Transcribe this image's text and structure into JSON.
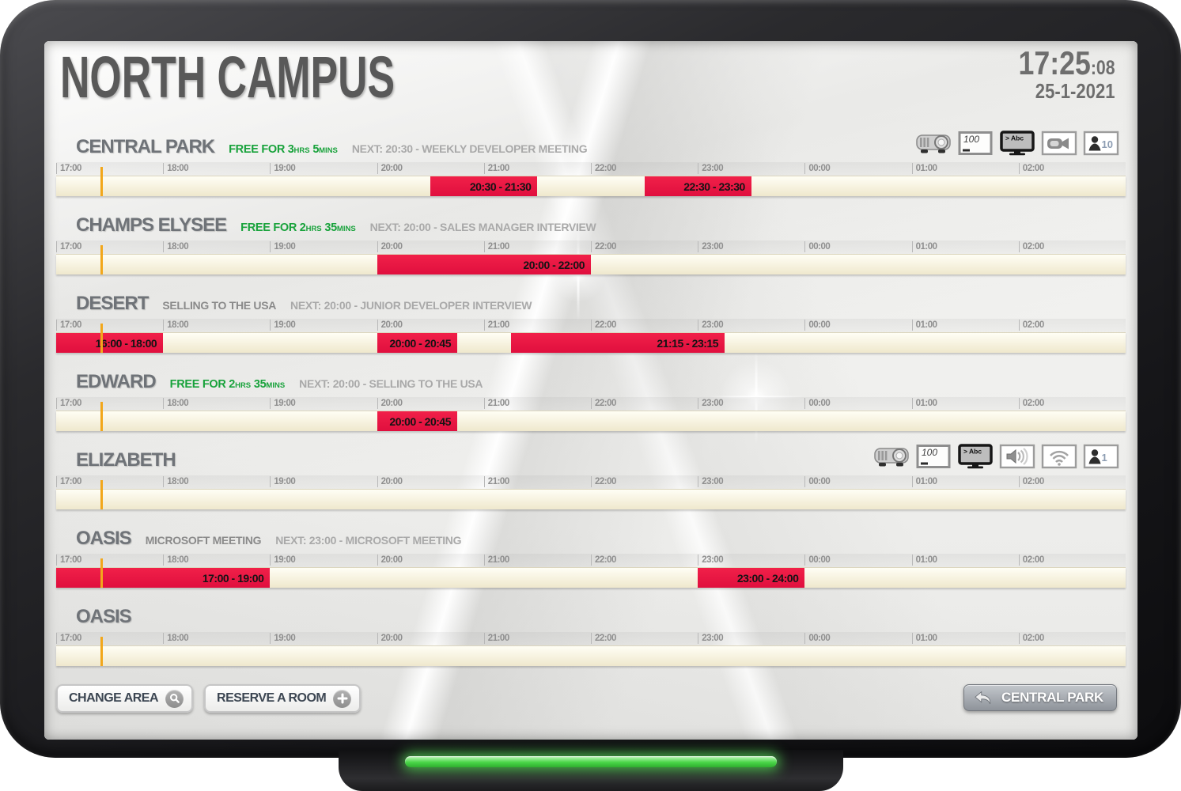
{
  "header": {
    "title": "NORTH CAMPUS",
    "time": "17:25",
    "seconds": ":08",
    "date": "25-1-2021"
  },
  "timeline": {
    "hours": [
      "17:00",
      "18:00",
      "19:00",
      "20:00",
      "21:00",
      "22:00",
      "23:00",
      "00:00",
      "01:00",
      "02:00"
    ],
    "range_start": 17,
    "range_end": 27,
    "now": 17.4167
  },
  "colors": {
    "booking_top": "#f12049",
    "booking_bottom": "#e00f3e",
    "now_marker": "#f2a71b",
    "free_green": "#18a23b",
    "led": "#4ad648"
  },
  "rooms": [
    {
      "name": "CENTRAL PARK",
      "status": {
        "type": "free",
        "parts": [
          {
            "t": "FREE FOR 3",
            "big": true
          },
          {
            "t": "HRS",
            "big": false
          },
          {
            "t": " 5",
            "big": true
          },
          {
            "t": "MINS",
            "big": false
          }
        ]
      },
      "next": "NEXT: 20:30 - WEEKLY DEVELOPER MEETING",
      "amenities": [
        {
          "type": "projector"
        },
        {
          "type": "whiteboard",
          "label": "100"
        },
        {
          "type": "display",
          "label": "> Abc"
        },
        {
          "type": "camera"
        },
        {
          "type": "capacity",
          "label": "10"
        }
      ],
      "bookings": [
        {
          "label": "20:30 - 21:30",
          "start": 20.5,
          "end": 21.5
        },
        {
          "label": "22:30 - 23:30",
          "start": 22.5,
          "end": 23.5
        }
      ]
    },
    {
      "name": "CHAMPS ELYSEE",
      "status": {
        "type": "free",
        "parts": [
          {
            "t": "FREE FOR 2",
            "big": true
          },
          {
            "t": "HRS",
            "big": false
          },
          {
            "t": " 35",
            "big": true
          },
          {
            "t": "MINS",
            "big": false
          }
        ]
      },
      "next": "NEXT: 20:00 - SALES MANAGER INTERVIEW",
      "amenities": [],
      "bookings": [
        {
          "label": "20:00 - 22:00",
          "start": 20,
          "end": 22
        }
      ]
    },
    {
      "name": "DESERT",
      "status": {
        "type": "meeting",
        "label": "SELLING TO THE USA"
      },
      "next": "NEXT: 20:00 - JUNIOR DEVELOPER INTERVIEW",
      "amenities": [],
      "bookings": [
        {
          "label": "16:00 - 18:00",
          "start": 16,
          "end": 18
        },
        {
          "label": "20:00 - 20:45",
          "start": 20,
          "end": 20.75
        },
        {
          "label": "21:15 - 23:15",
          "start": 21.25,
          "end": 23.25
        }
      ]
    },
    {
      "name": "EDWARD",
      "status": {
        "type": "free",
        "parts": [
          {
            "t": "FREE FOR 2",
            "big": true
          },
          {
            "t": "HRS",
            "big": false
          },
          {
            "t": " 35",
            "big": true
          },
          {
            "t": "MINS",
            "big": false
          }
        ]
      },
      "next": "NEXT: 20:00 - SELLING TO THE USA",
      "amenities": [],
      "bookings": [
        {
          "label": "20:00 - 20:45",
          "start": 20,
          "end": 20.75
        }
      ]
    },
    {
      "name": "ELIZABETH",
      "status": {
        "type": "none"
      },
      "next": "",
      "amenities": [
        {
          "type": "projector"
        },
        {
          "type": "whiteboard",
          "label": "100"
        },
        {
          "type": "display",
          "label": "> Abc"
        },
        {
          "type": "speaker"
        },
        {
          "type": "wifi"
        },
        {
          "type": "capacity",
          "label": "1"
        }
      ],
      "bookings": []
    },
    {
      "name": "OASIS",
      "status": {
        "type": "meeting",
        "label": "MICROSOFT MEETING"
      },
      "next": "NEXT: 23:00 - MICROSOFT MEETING",
      "amenities": [],
      "bookings": [
        {
          "label": "17:00 - 19:00",
          "start": 17,
          "end": 19
        },
        {
          "label": "23:00 - 24:00",
          "start": 23,
          "end": 24
        }
      ]
    },
    {
      "name": "OASIS",
      "status": {
        "type": "none"
      },
      "next": "",
      "amenities": [],
      "bookings": []
    }
  ],
  "footer": {
    "change_area": "CHANGE AREA",
    "reserve_room": "RESERVE A ROOM",
    "back_button": "CENTRAL PARK"
  }
}
